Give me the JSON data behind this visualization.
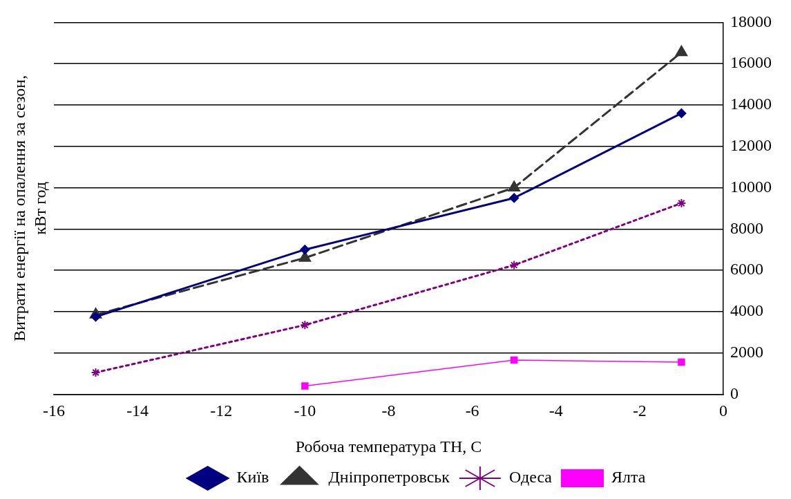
{
  "chart_data": {
    "type": "line",
    "xlabel": "Робоча температура ТН, С",
    "ylabel": "Витрати енергії на опалення за сезон, кВт год",
    "xlim": [
      -16,
      0
    ],
    "xticks": [
      -16,
      -14,
      -12,
      -10,
      -8,
      -6,
      -4,
      -2,
      0
    ],
    "ylim": [
      0,
      18000
    ],
    "yticks": [
      0,
      2000,
      4000,
      6000,
      8000,
      10000,
      12000,
      14000,
      16000,
      18000
    ],
    "grid": "y",
    "legend": "bottom",
    "series": [
      {
        "name": "Київ",
        "color": "#000080",
        "marker": "diamond",
        "line_style": "solid",
        "x": [
          -15,
          -10,
          -5,
          -1
        ],
        "values": [
          3750,
          7000,
          9500,
          13600
        ]
      },
      {
        "name": "Дніпропетровськ",
        "color": "#333333",
        "marker": "triangle",
        "line_style": "dashed",
        "x": [
          -15,
          -10,
          -5,
          -1
        ],
        "values": [
          3850,
          6600,
          10000,
          16550
        ]
      },
      {
        "name": "Одеса",
        "color": "#800080",
        "marker": "cross",
        "line_style": "dotted",
        "x": [
          -15,
          -10,
          -5,
          -1
        ],
        "values": [
          1050,
          3350,
          6250,
          9250
        ]
      },
      {
        "name": "Ялта",
        "color": "#ff00ff",
        "marker": "square",
        "line_style": "solid",
        "x": [
          -10,
          -5,
          -1
        ],
        "values": [
          400,
          1650,
          1550
        ]
      }
    ]
  }
}
